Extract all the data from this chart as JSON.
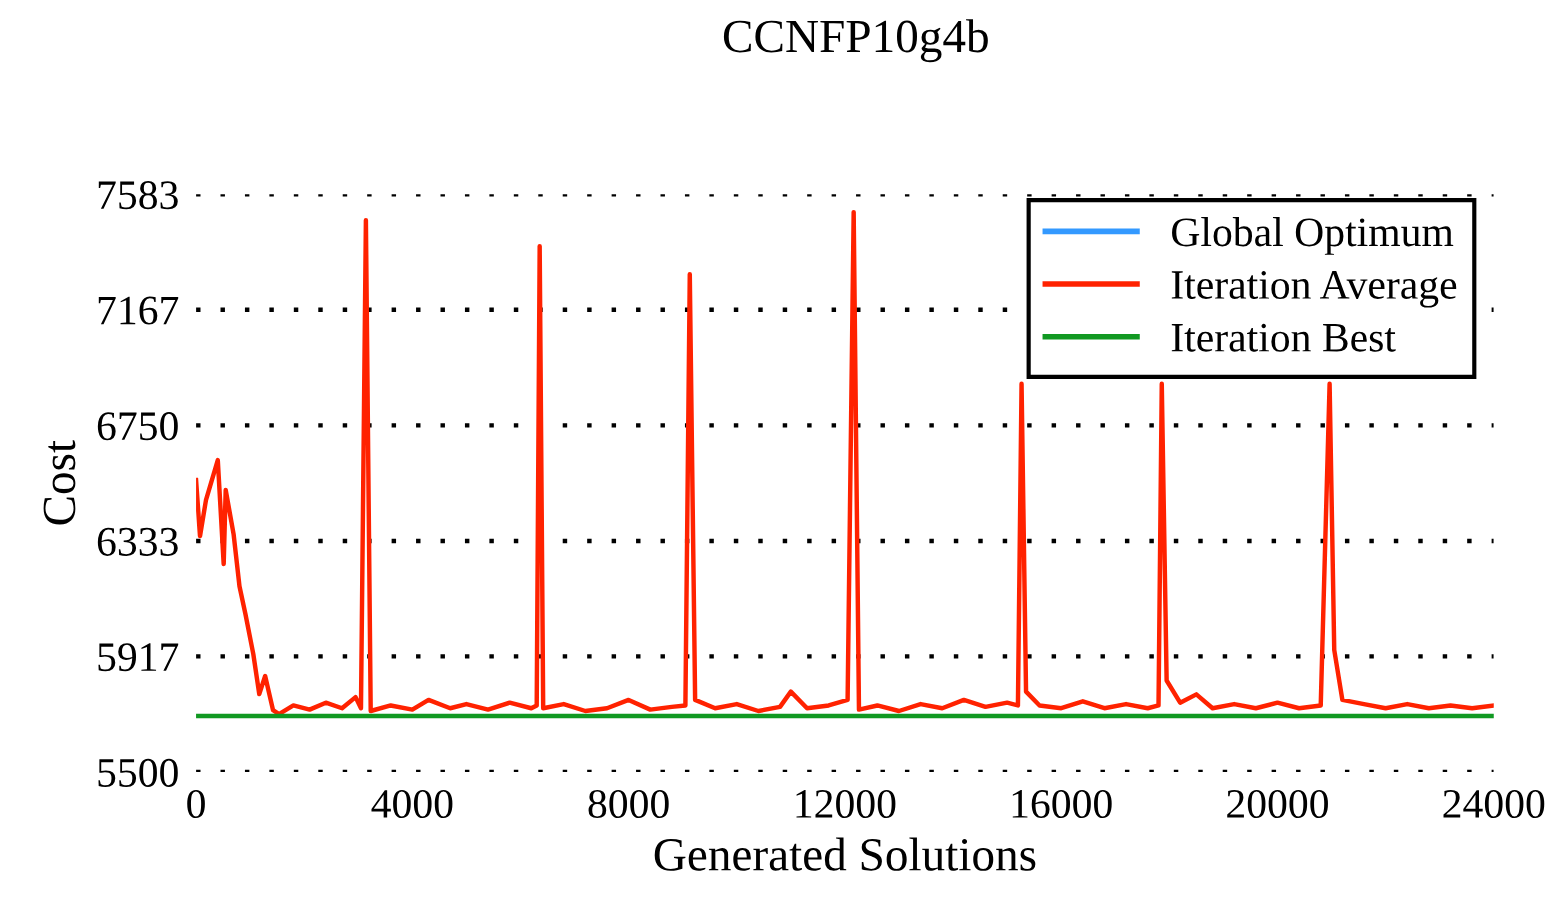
{
  "chart_data": {
    "type": "line",
    "title": "CCNFP10g4b",
    "xlabel": "Generated Solutions",
    "ylabel": "Cost",
    "xlim": [
      0,
      24000
    ],
    "xticks": [
      0,
      4000,
      8000,
      12000,
      16000,
      20000,
      24000
    ],
    "ylim": [
      5500,
      7583
    ],
    "yticks": [
      5500,
      5917,
      6333,
      6750,
      7167,
      7583
    ],
    "grid": "y",
    "legend": "top right",
    "series": [
      {
        "name": "Global Optimum",
        "color": "#3399ff"
      },
      {
        "name": "Iteration Average",
        "color": "#ff2200",
        "x": [
          0,
          73,
          183,
          402,
          511,
          548,
          694,
          803,
          913,
          1059,
          1169,
          1278,
          1424,
          1534,
          1800,
          2100,
          2400,
          2700,
          2950,
          3050,
          3141,
          3230,
          3600,
          4000,
          4300,
          4700,
          5000,
          5400,
          5800,
          6200,
          6300,
          6355,
          6420,
          6800,
          7200,
          7600,
          8000,
          8400,
          8800,
          9050,
          9131,
          9230,
          9600,
          10000,
          10400,
          10800,
          11000,
          11300,
          11700,
          12050,
          12162,
          12260,
          12600,
          13000,
          13400,
          13800,
          14200,
          14600,
          15000,
          15200,
          15267,
          15350,
          15600,
          16000,
          16400,
          16800,
          17200,
          17600,
          17800,
          17860,
          17950,
          18200,
          18500,
          18800,
          19200,
          19600,
          20000,
          20400,
          20800,
          20964,
          21050,
          21200,
          21600,
          22000,
          22400,
          22800,
          23200,
          23600,
          24000
        ],
        "values": [
          6553,
          6351,
          6480,
          6625,
          6250,
          6517,
          6358,
          6170,
          6070,
          5925,
          5781,
          5846,
          5723,
          5709,
          5740,
          5725,
          5750,
          5730,
          5770,
          5730,
          7490,
          5720,
          5740,
          5725,
          5760,
          5730,
          5745,
          5725,
          5750,
          5730,
          5740,
          7396,
          5730,
          5745,
          5720,
          5730,
          5760,
          5725,
          5735,
          5740,
          7295,
          5760,
          5730,
          5745,
          5720,
          5735,
          5790,
          5730,
          5740,
          5760,
          7519,
          5725,
          5740,
          5720,
          5745,
          5730,
          5760,
          5735,
          5750,
          5740,
          6900,
          5790,
          5740,
          5730,
          5755,
          5730,
          5745,
          5730,
          5740,
          6900,
          5830,
          5750,
          5780,
          5730,
          5745,
          5730,
          5750,
          5730,
          5740,
          6900,
          5940,
          5760,
          5745,
          5730,
          5745,
          5730,
          5740,
          5730,
          5740
        ]
      },
      {
        "name": "Iteration Best",
        "color": "#119922",
        "x": [
          0,
          24000
        ],
        "values": [
          5702,
          5702
        ]
      }
    ]
  }
}
